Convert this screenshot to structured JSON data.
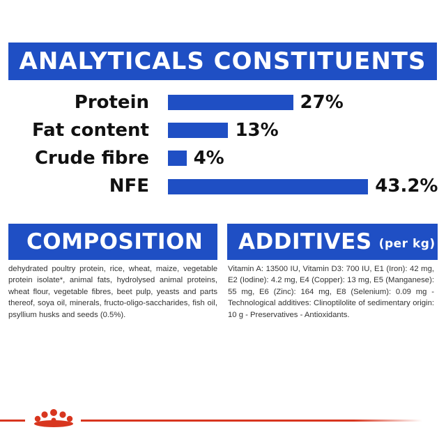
{
  "analytics": {
    "title": "ANALYTICALS CONSTITUENTS",
    "rows": [
      {
        "label": "Protein",
        "value": "27%",
        "percent": 27
      },
      {
        "label": "Fat content",
        "value": "13%",
        "percent": 13
      },
      {
        "label": "Crude fibre",
        "value": "4%",
        "percent": 4
      },
      {
        "label": "NFE",
        "value": "43.2%",
        "percent": 43.2
      }
    ]
  },
  "composition": {
    "title": "COMPOSITION",
    "text": "dehydrated poultry protein, rice, wheat, maize, vegetable protein isolate*, animal fats, hydrolysed animal proteins, wheat flour, vegetable fibres, beet pulp, yeasts and parts thereof, soya oil, minerals, fructo-oligo-saccharides, fish oil, psyllium husks and seeds (0.5%)."
  },
  "additives": {
    "title": "ADDITIVES",
    "unit": "(per kg)",
    "text": "Vitamin A: 13500 IU, Vitamin D3: 700 IU, E1 (Iron): 42 mg, E2 (Iodine): 4.2 mg, E4 (Copper): 13 mg, E5 (Manganese): 55 mg, E6 (Zinc): 164 mg, E8 (Selenium): 0.09 mg -Technological additives: Clinoptilolite of sedimentary origin: 10 g - Preservatives - Antioxidants."
  },
  "colors": {
    "brand_blue": "#1f4fc4",
    "brand_red": "#d8361f"
  },
  "footer": {
    "logo_icon": "crown-icon"
  }
}
